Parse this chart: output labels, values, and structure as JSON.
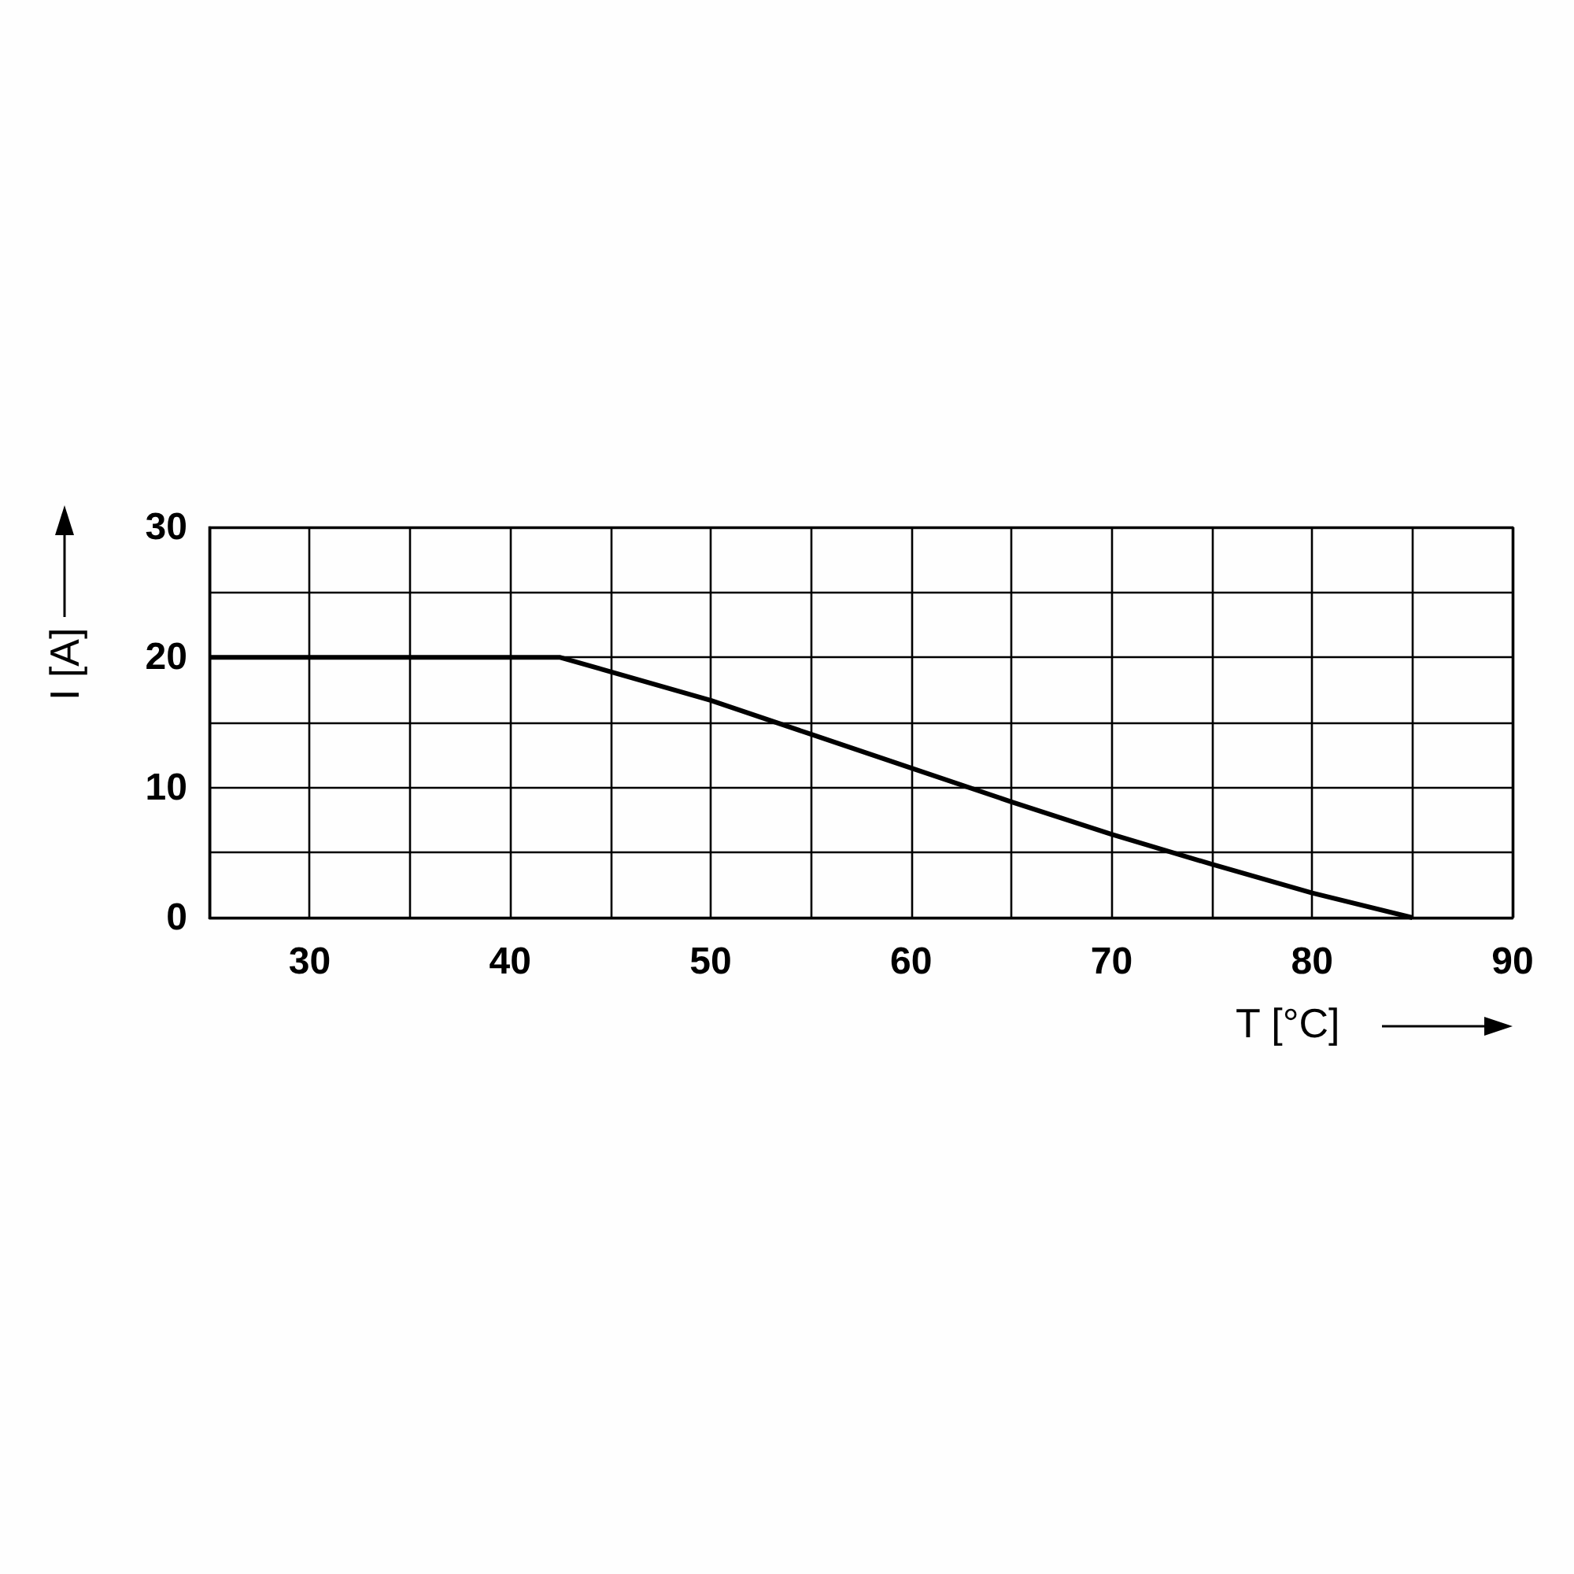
{
  "chart_data": {
    "type": "line",
    "xlabel": "T [°C]",
    "ylabel": "I [A]",
    "series": [
      {
        "color": "#000000",
        "x": [
          25,
          42.5,
          50,
          55,
          60,
          65,
          70,
          75,
          80,
          85
        ],
        "values": [
          20,
          20,
          16.7,
          14.1,
          11.5,
          8.9,
          6.4,
          4.1,
          1.9,
          0
        ]
      }
    ],
    "xlim": [
      25,
      90
    ],
    "xticks": [
      {
        "value": 25,
        "label": null
      },
      30,
      {
        "value": 35,
        "label": null
      },
      40,
      {
        "value": 45,
        "label": null
      },
      50,
      {
        "value": 55,
        "label": null
      },
      60,
      {
        "value": 65,
        "label": null
      },
      70,
      {
        "value": 75,
        "label": null
      },
      80,
      {
        "value": 85,
        "label": null
      },
      90
    ],
    "ylim": [
      0,
      30
    ],
    "yticks": [
      0,
      {
        "value": 5,
        "label": null
      },
      10,
      {
        "value": 15,
        "label": null
      },
      20,
      {
        "value": 25,
        "label": null
      },
      30
    ],
    "grid": true,
    "marker": "none",
    "line_style": "solid"
  }
}
